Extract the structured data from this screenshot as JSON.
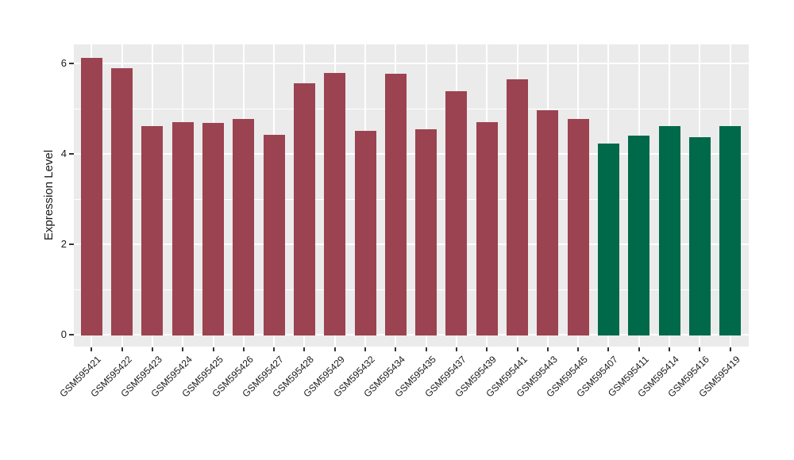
{
  "figure": {
    "background": "#FFFFFF",
    "panel_background": "#EBEBEB",
    "grid_color": "#FFFFFF",
    "axis_text_color": "#1A1A1A",
    "tick_mark_color": "#333333"
  },
  "chart_data": {
    "type": "bar",
    "title": "",
    "xlabel": "",
    "ylabel": "Expression Level",
    "categories": [
      "GSM595421",
      "GSM595422",
      "GSM595423",
      "GSM595424",
      "GSM595425",
      "GSM595426",
      "GSM595427",
      "GSM595428",
      "GSM595429",
      "GSM595432",
      "GSM595434",
      "GSM595435",
      "GSM595437",
      "GSM595439",
      "GSM595441",
      "GSM595443",
      "GSM595445",
      "GSM595407",
      "GSM595411",
      "GSM595414",
      "GSM595416",
      "GSM595419"
    ],
    "values": [
      6.12,
      5.9,
      4.62,
      4.71,
      4.69,
      4.78,
      4.42,
      5.56,
      5.79,
      4.51,
      5.77,
      4.55,
      5.39,
      4.7,
      5.65,
      4.96,
      4.77,
      4.23,
      4.4,
      4.62,
      4.36,
      4.62
    ],
    "bar_groups": [
      "maroon",
      "maroon",
      "maroon",
      "maroon",
      "maroon",
      "maroon",
      "maroon",
      "maroon",
      "maroon",
      "maroon",
      "maroon",
      "maroon",
      "maroon",
      "maroon",
      "maroon",
      "maroon",
      "maroon",
      "green",
      "green",
      "green",
      "green",
      "green"
    ],
    "group_colors": {
      "maroon": "#9B4351",
      "green": "#00694A"
    },
    "yticks": [
      0,
      2,
      4,
      6
    ],
    "ytick_labels": [
      "0",
      "2",
      "4",
      "6"
    ],
    "y_minor_ticks": [
      1,
      3,
      5
    ],
    "ylim": [
      -0.26,
      6.42
    ],
    "x_label_rotation_deg": 45,
    "grid": "horizontal major+minor, vertical major at category centers",
    "legend": "none"
  }
}
